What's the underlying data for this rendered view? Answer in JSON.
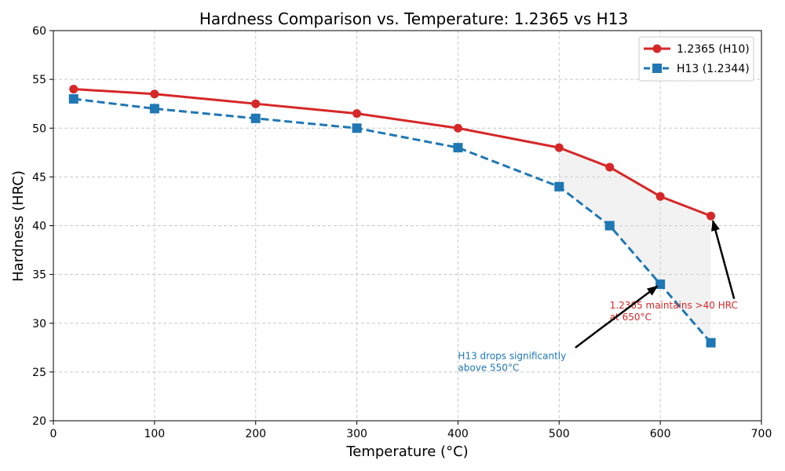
{
  "chart_data": {
    "type": "line",
    "title": "Hardness Comparison vs. Temperature: 1.2365 vs H13",
    "xlabel": "Temperature (°C)",
    "ylabel": "Hardness (HRC)",
    "xlim": [
      0,
      700
    ],
    "ylim": [
      20,
      60
    ],
    "xticks": [
      0,
      100,
      200,
      300,
      400,
      500,
      600,
      700
    ],
    "yticks": [
      20,
      25,
      30,
      35,
      40,
      45,
      50,
      55,
      60
    ],
    "grid": true,
    "legend_position": "top-right",
    "series": [
      {
        "name": "1.2365 (H10)",
        "color": "#d62728",
        "line_style": "solid",
        "marker": "circle",
        "x": [
          20,
          100,
          200,
          300,
          400,
          500,
          550,
          600,
          650
        ],
        "y": [
          54,
          53.5,
          52.5,
          51.5,
          50,
          48,
          46,
          43,
          41
        ]
      },
      {
        "name": "H13 (1.2344)",
        "color": "#1f77b4",
        "line_style": "dashed",
        "marker": "square",
        "x": [
          20,
          100,
          200,
          300,
          400,
          500,
          550,
          600,
          650
        ],
        "y": [
          53,
          52,
          51,
          50,
          48,
          44,
          40,
          34,
          28
        ]
      }
    ],
    "shaded_region": {
      "between": [
        "1.2365 (H10)",
        "H13 (1.2344)"
      ],
      "x_from": 500,
      "x_to": 650,
      "color": "#d9d9d9"
    },
    "annotations": [
      {
        "lines": [
          "1.2365 maintains >40 HRC",
          "at 650°C"
        ],
        "color": "#d62728",
        "text_at": [
          550,
          31.5
        ],
        "arrow_from": [
          673,
          32.5
        ],
        "arrow_to": [
          652,
          40.5
        ]
      },
      {
        "lines": [
          "H13 drops significantly",
          "above 550°C"
        ],
        "color": "#1f77b4",
        "text_at": [
          400,
          26.3
        ],
        "arrow_from": [
          516,
          27.5
        ],
        "arrow_to": [
          597,
          33.8
        ]
      }
    ]
  }
}
